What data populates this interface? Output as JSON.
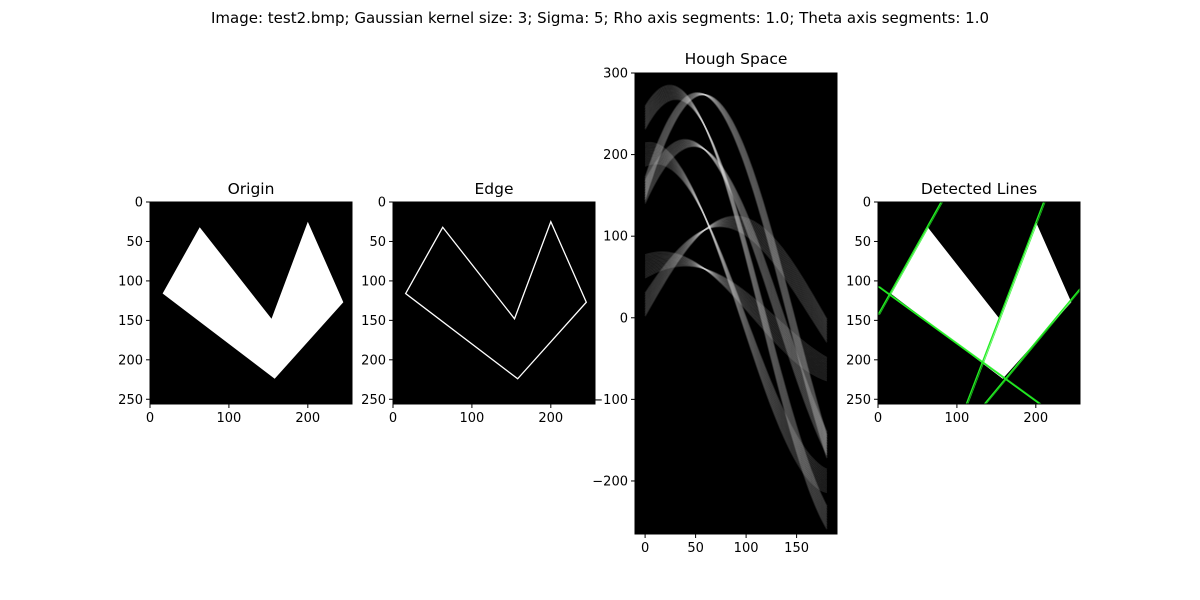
{
  "figure": {
    "suptitle": "Image: test2.bmp; Gaussian kernel size: 3; Sigma: 5; Rho axis segments: 1.0; Theta axis segments: 1.0"
  },
  "chart_data": [
    {
      "type": "image",
      "title": "Origin",
      "xlim": [
        0,
        256
      ],
      "ylim": [
        256,
        0
      ],
      "xticks": [
        0,
        100,
        200
      ],
      "yticks": [
        0,
        50,
        100,
        150,
        200,
        250
      ],
      "colors": {
        "background": "#000000",
        "shape": "#ffffff"
      },
      "shape_vertices": [
        [
          16,
          116
        ],
        [
          63,
          32
        ],
        [
          154,
          148
        ],
        [
          200,
          25
        ],
        [
          245,
          127
        ],
        [
          158,
          224
        ]
      ]
    },
    {
      "type": "image",
      "title": "Edge",
      "xlim": [
        0,
        256
      ],
      "ylim": [
        256,
        0
      ],
      "xticks": [
        0,
        100,
        200
      ],
      "yticks": [
        0,
        50,
        100,
        150,
        200,
        250
      ],
      "colors": {
        "background": "#000000",
        "edge": "#ffffff"
      },
      "shape_vertices": [
        [
          16,
          116
        ],
        [
          63,
          32
        ],
        [
          154,
          148
        ],
        [
          200,
          25
        ],
        [
          245,
          127
        ],
        [
          158,
          224
        ]
      ]
    },
    {
      "type": "heatmap",
      "title": "Hough Space",
      "xlim": [
        -10,
        190
      ],
      "ylim": [
        -265,
        300
      ],
      "xticks": [
        0,
        50,
        100,
        150
      ],
      "yticks": [
        300,
        200,
        100,
        0,
        -100,
        -200
      ],
      "colormap": "gray",
      "theta_range_deg": [
        0,
        180
      ],
      "sinusoid_points": [
        [
          16,
          116
        ],
        [
          63,
          32
        ],
        [
          154,
          148
        ],
        [
          200,
          25
        ],
        [
          245,
          127
        ],
        [
          158,
          224
        ]
      ]
    },
    {
      "type": "image",
      "title": "Detected Lines",
      "xlim": [
        0,
        256
      ],
      "ylim": [
        256,
        0
      ],
      "xticks": [
        0,
        100,
        200
      ],
      "yticks": [
        0,
        50,
        100,
        150,
        200,
        250
      ],
      "colors": {
        "background": "#000000",
        "shape": "#ffffff",
        "lines": "#22ee22"
      },
      "shape_vertices": [
        [
          16,
          116
        ],
        [
          63,
          32
        ],
        [
          154,
          148
        ],
        [
          200,
          25
        ],
        [
          245,
          127
        ],
        [
          158,
          224
        ]
      ],
      "detected_lines": [
        [
          [
            0,
            143
          ],
          [
            80,
            0
          ]
        ],
        [
          [
            0,
            107
          ],
          [
            205,
            256
          ]
        ],
        [
          [
            112,
            256
          ],
          [
            210,
            0
          ]
        ],
        [
          [
            135,
            256
          ],
          [
            256,
            110
          ]
        ]
      ]
    }
  ]
}
